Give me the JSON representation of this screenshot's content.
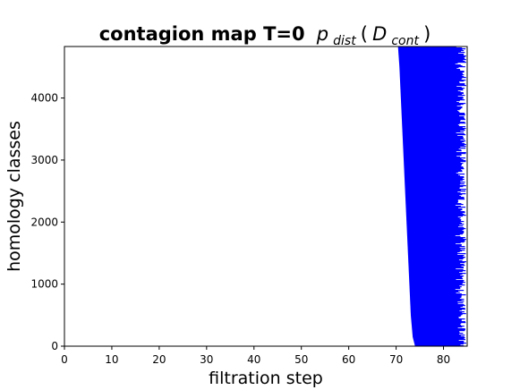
{
  "chart_data": {
    "type": "bar",
    "title": "contagion map T=0",
    "title_math": {
      "base": "p",
      "sub": "dist",
      "paren_base": "D",
      "paren_sub": "cont"
    },
    "xlabel": "filtration step",
    "ylabel": "homology classes",
    "xlim": [
      0,
      85
    ],
    "ylim": [
      0,
      4830
    ],
    "xticks": [
      0,
      10,
      20,
      30,
      40,
      50,
      60,
      70,
      80
    ],
    "yticks": [
      0,
      1000,
      2000,
      3000,
      4000
    ],
    "bar_color": "#0000ff",
    "description_of_bars": "dense horizontal persistence bars",
    "left_edge_curve": [
      [
        70.4,
        4830
      ],
      [
        70.7,
        4500
      ],
      [
        71.0,
        4000
      ],
      [
        71.3,
        3500
      ],
      [
        71.6,
        3000
      ],
      [
        71.9,
        2500
      ],
      [
        72.2,
        2000
      ],
      [
        72.5,
        1500
      ],
      [
        72.8,
        1000
      ],
      [
        73.1,
        500
      ],
      [
        73.5,
        150
      ],
      [
        74.0,
        0
      ]
    ],
    "right_edge_range": [
      82.4,
      84.8
    ]
  }
}
